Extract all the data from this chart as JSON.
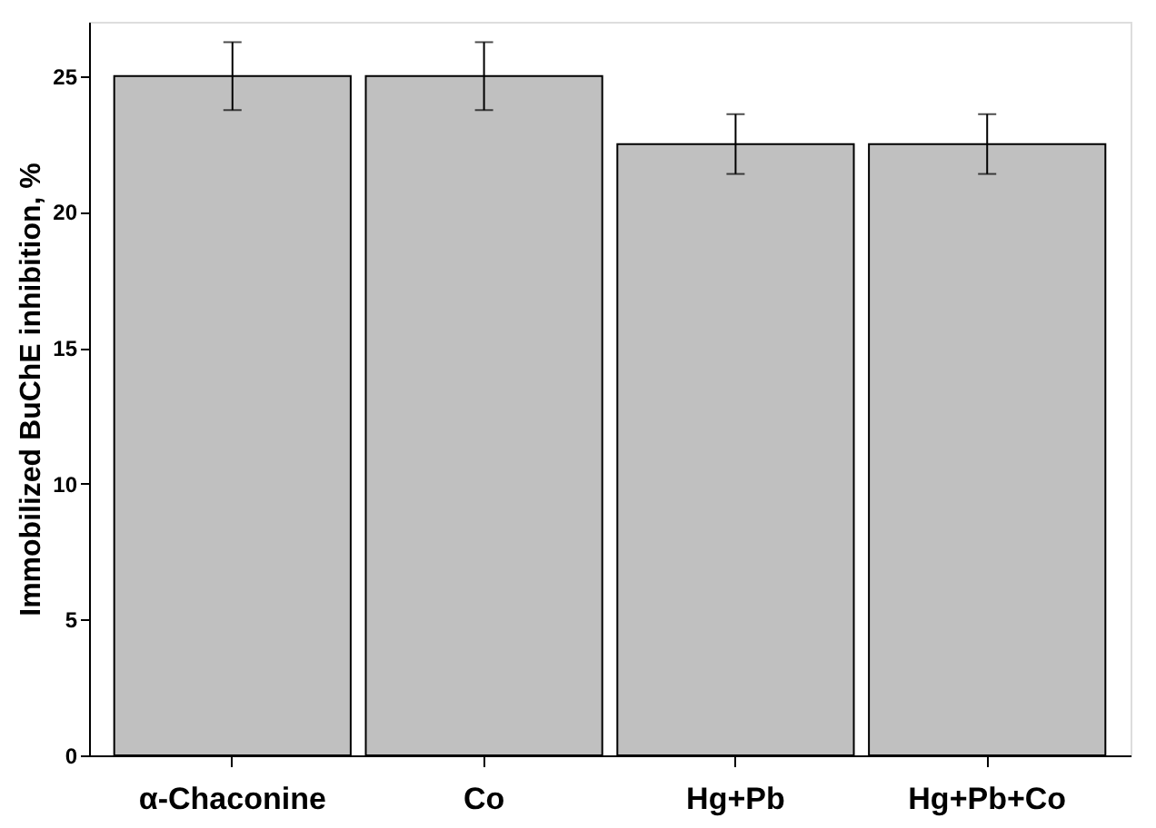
{
  "chart_data": {
    "type": "bar",
    "ylabel": "Immobilized BuChE inhibition, %",
    "categories": [
      "α-Chaconine",
      "Co",
      "Hg+Pb",
      "Hg+Pb+Co"
    ],
    "values": [
      25,
      25,
      22.5,
      22.5
    ],
    "errors": [
      1.25,
      1.25,
      1.1,
      1.1
    ],
    "color": "#c0c0c0",
    "ylim": [
      0,
      27
    ],
    "yticks": [
      0,
      5,
      10,
      15,
      20,
      25
    ],
    "grid": false
  }
}
